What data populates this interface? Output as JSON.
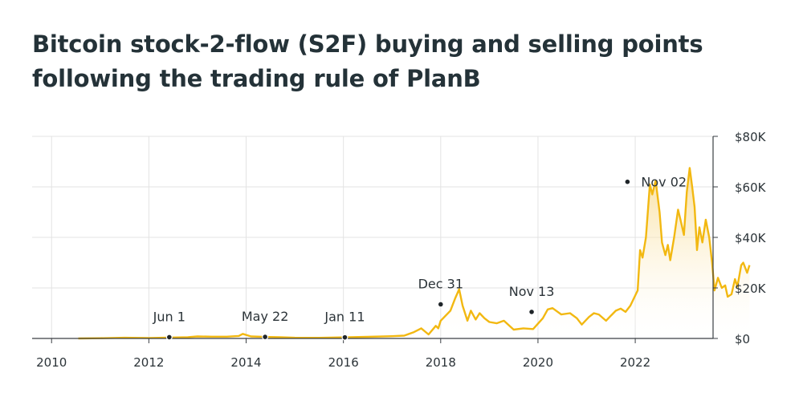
{
  "title_lines": [
    "Bitcoin stock-2-flow (S2F) buying and selling points",
    "following the trading rule of PlanB"
  ],
  "colors": {
    "line": "#f2b811",
    "area_top": "#f8d98a",
    "grid": "#e3e3e3",
    "axis": "#3a3f44",
    "marker": "#1f2529",
    "text": "#2b3338"
  },
  "chart_data": {
    "type": "area",
    "title": "Bitcoin stock-2-flow (S2F) buying and selling points following the trading rule of PlanB",
    "xlabel": "",
    "ylabel": "",
    "xlim": [
      2009.6,
      2023.6
    ],
    "ylim": [
      0,
      80000
    ],
    "x_ticks": [
      {
        "value": 2010,
        "label": "2010"
      },
      {
        "value": 2012,
        "label": "2012"
      },
      {
        "value": 2014,
        "label": "2014"
      },
      {
        "value": 2016,
        "label": "2016"
      },
      {
        "value": 2018,
        "label": "2018"
      },
      {
        "value": 2020,
        "label": "2020"
      },
      {
        "value": 2022,
        "label": "2022"
      }
    ],
    "y_ticks": [
      {
        "value": 0,
        "label": "$0"
      },
      {
        "value": 20000,
        "label": "$20K"
      },
      {
        "value": 40000,
        "label": "$40K"
      },
      {
        "value": 60000,
        "label": "$60K"
      },
      {
        "value": 80000,
        "label": "$80K"
      }
    ],
    "y_axis_side": "right",
    "grid": "vertical and horizontal",
    "series": [
      {
        "points": [
          [
            2010.55,
            0
          ],
          [
            2011.0,
            100
          ],
          [
            2011.5,
            300
          ],
          [
            2012.0,
            200
          ],
          [
            2012.4,
            350
          ],
          [
            2012.8,
            500
          ],
          [
            2013.0,
            800
          ],
          [
            2013.3,
            700
          ],
          [
            2013.6,
            700
          ],
          [
            2013.85,
            1000
          ],
          [
            2013.93,
            1800
          ],
          [
            2014.1,
            800
          ],
          [
            2014.39,
            600
          ],
          [
            2014.7,
            500
          ],
          [
            2015.0,
            300
          ],
          [
            2015.5,
            250
          ],
          [
            2016.03,
            430
          ],
          [
            2016.5,
            650
          ],
          [
            2017.0,
            900
          ],
          [
            2017.25,
            1100
          ],
          [
            2017.45,
            2500
          ],
          [
            2017.6,
            4000
          ],
          [
            2017.75,
            1600
          ],
          [
            2017.9,
            5000
          ],
          [
            2017.95,
            4000
          ],
          [
            2018.0,
            7000
          ],
          [
            2018.2,
            11000
          ],
          [
            2018.3,
            16000
          ],
          [
            2018.38,
            19500
          ],
          [
            2018.45,
            13000
          ],
          [
            2018.5,
            10000
          ],
          [
            2018.55,
            7000
          ],
          [
            2018.62,
            11000
          ],
          [
            2018.72,
            7500
          ],
          [
            2018.8,
            10000
          ],
          [
            2018.9,
            8000
          ],
          [
            2019.0,
            6500
          ],
          [
            2019.15,
            6000
          ],
          [
            2019.3,
            7000
          ],
          [
            2019.5,
            3500
          ],
          [
            2019.7,
            4000
          ],
          [
            2019.9,
            3700
          ],
          [
            2020.1,
            8000
          ],
          [
            2020.2,
            11500
          ],
          [
            2020.3,
            12000
          ],
          [
            2020.48,
            9500
          ],
          [
            2020.66,
            10000
          ],
          [
            2020.8,
            8000
          ],
          [
            2020.9,
            5500
          ],
          [
            2021.05,
            8500
          ],
          [
            2021.15,
            10000
          ],
          [
            2021.25,
            9500
          ],
          [
            2021.4,
            7000
          ],
          [
            2021.5,
            9000
          ],
          [
            2021.6,
            11000
          ],
          [
            2021.7,
            11800
          ],
          [
            2021.8,
            10500
          ],
          [
            2021.9,
            13000
          ],
          [
            2022.05,
            19000
          ],
          [
            2022.1,
            35000
          ],
          [
            2022.15,
            32000
          ],
          [
            2022.22,
            40000
          ],
          [
            2022.3,
            61000
          ],
          [
            2022.35,
            57000
          ],
          [
            2022.42,
            62500
          ],
          [
            2022.5,
            50000
          ],
          [
            2022.55,
            38000
          ],
          [
            2022.62,
            33000
          ],
          [
            2022.67,
            37000
          ],
          [
            2022.72,
            31000
          ],
          [
            2022.8,
            40000
          ],
          [
            2022.88,
            51000
          ],
          [
            2022.93,
            47000
          ],
          [
            2023.0,
            41000
          ],
          [
            2023.06,
            58000
          ],
          [
            2023.12,
            67500
          ],
          [
            2023.17,
            60000
          ],
          [
            2023.22,
            52000
          ],
          [
            2023.27,
            35000
          ],
          [
            2023.32,
            44000
          ],
          [
            2023.38,
            38000
          ],
          [
            2023.45,
            47000
          ],
          [
            2023.52,
            40000
          ],
          [
            2023.58,
            30000
          ],
          [
            2023.63,
            19000
          ],
          [
            2023.7,
            24000
          ],
          [
            2023.78,
            20000
          ],
          [
            2023.85,
            21000
          ],
          [
            2023.9,
            16500
          ],
          [
            2023.98,
            17500
          ],
          [
            2024.05,
            23500
          ],
          [
            2024.1,
            20500
          ],
          [
            2024.18,
            29000
          ],
          [
            2024.22,
            30000
          ],
          [
            2024.3,
            26000
          ],
          [
            2024.35,
            29000
          ]
        ]
      }
    ],
    "annotations": [
      {
        "x": 2012.42,
        "y": 500,
        "label": "Jun 1"
      },
      {
        "x": 2014.39,
        "y": 600,
        "label": "May 22"
      },
      {
        "x": 2016.03,
        "y": 430,
        "label": "Jan 11"
      },
      {
        "x": 2018.0,
        "y": 13500,
        "label": "Dec 31"
      },
      {
        "x": 2019.87,
        "y": 10500,
        "label": "Nov 13"
      },
      {
        "x": 2021.84,
        "y": 62000,
        "label": "Nov 02"
      }
    ]
  }
}
